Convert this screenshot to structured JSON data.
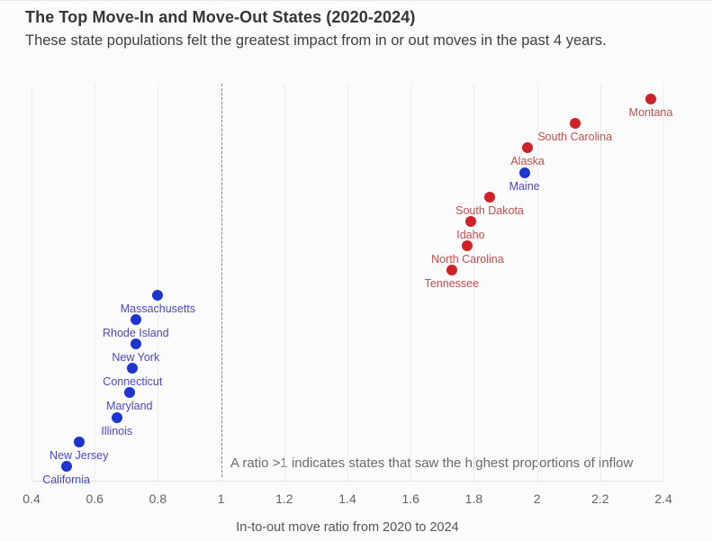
{
  "header": {
    "title": "The Top Move-In and Move-Out States (2020-2024)",
    "subtitle": "These state populations felt the greatest impact from in or out moves in the past 4 years."
  },
  "chart_data": {
    "type": "scatter",
    "title": "The Top Move-In and Move-Out States (2020-2024)",
    "subtitle": "These state populations felt the greatest impact from in or out moves in the past 4 years.",
    "xlabel": "In-to-out move ratio from 2020 to 2024",
    "ylabel": "",
    "xlim": [
      0.4,
      2.4
    ],
    "grid": "vertical",
    "legend": "none",
    "x_ticks": [
      {
        "value": 0.4,
        "label": "0.4"
      },
      {
        "value": 0.6,
        "label": "0.6"
      },
      {
        "value": 0.8,
        "label": "0.8"
      },
      {
        "value": 1.0,
        "label": "1"
      },
      {
        "value": 1.2,
        "label": "1.2"
      },
      {
        "value": 1.4,
        "label": "1.4"
      },
      {
        "value": 1.6,
        "label": "1.6"
      },
      {
        "value": 1.8,
        "label": "1.8"
      },
      {
        "value": 2.0,
        "label": "2"
      },
      {
        "value": 2.2,
        "label": "2.2"
      },
      {
        "value": 2.4,
        "label": "2.4"
      }
    ],
    "reference_line": {
      "value": 1,
      "style": "dashed",
      "note": "A ratio >1 indicates states that saw the highest proportions of inflow"
    },
    "group_colors": {
      "move_in": {
        "dot": "#cf2127",
        "label": "#c44e4e"
      },
      "move_out": {
        "dot": "#1f35cf",
        "label": "#4848c8"
      }
    },
    "points": [
      {
        "state": "Montana",
        "ratio": 2.36,
        "group": "move_in"
      },
      {
        "state": "South Carolina",
        "ratio": 2.12,
        "group": "move_in"
      },
      {
        "state": "Alaska",
        "ratio": 1.97,
        "group": "move_in"
      },
      {
        "state": "Maine",
        "ratio": 1.96,
        "group": "move_out"
      },
      {
        "state": "South Dakota",
        "ratio": 1.85,
        "group": "move_in"
      },
      {
        "state": "Idaho",
        "ratio": 1.79,
        "group": "move_in"
      },
      {
        "state": "North Carolina",
        "ratio": 1.78,
        "group": "move_in"
      },
      {
        "state": "Tennessee",
        "ratio": 1.73,
        "group": "move_in"
      },
      {
        "state": "Massachusetts",
        "ratio": 0.8,
        "group": "move_out"
      },
      {
        "state": "Rhode Island",
        "ratio": 0.73,
        "group": "move_out"
      },
      {
        "state": "New York",
        "ratio": 0.73,
        "group": "move_out"
      },
      {
        "state": "Connecticut",
        "ratio": 0.72,
        "group": "move_out"
      },
      {
        "state": "Maryland",
        "ratio": 0.71,
        "group": "move_out"
      },
      {
        "state": "Illinois",
        "ratio": 0.67,
        "group": "move_out"
      },
      {
        "state": "New Jersey",
        "ratio": 0.55,
        "group": "move_out"
      },
      {
        "state": "California",
        "ratio": 0.51,
        "group": "move_out"
      }
    ]
  }
}
